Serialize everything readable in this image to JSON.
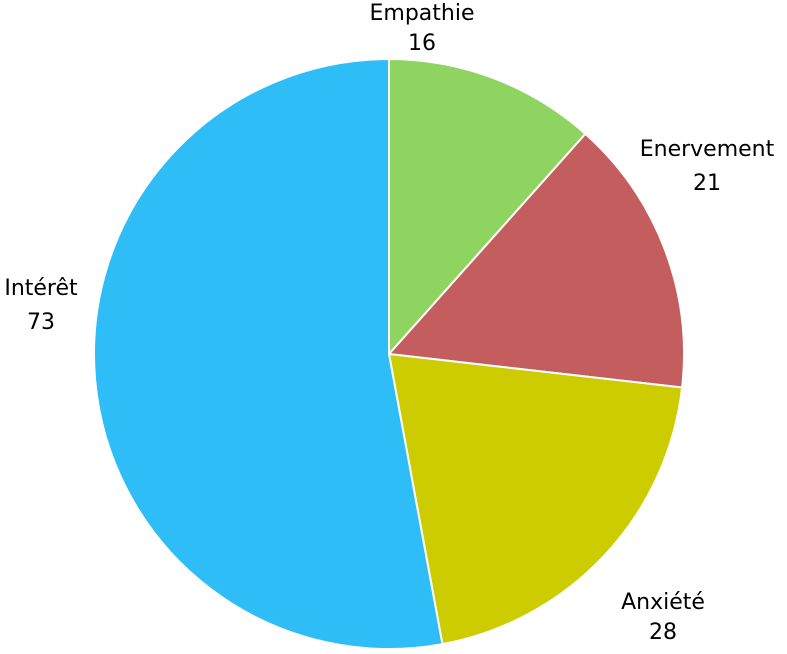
{
  "chart_data": {
    "type": "pie",
    "title": "",
    "start": "top",
    "direction": "clockwise",
    "slices": [
      {
        "label": "Empathie",
        "value": 16,
        "color": "#8fd460"
      },
      {
        "label": "Enervement",
        "value": 21,
        "color": "#c45e5e"
      },
      {
        "label": "Anxiété",
        "value": 28,
        "color": "#cccc00"
      },
      {
        "label": "Intérêt",
        "value": 73,
        "color": "#2ebdf7"
      }
    ]
  }
}
